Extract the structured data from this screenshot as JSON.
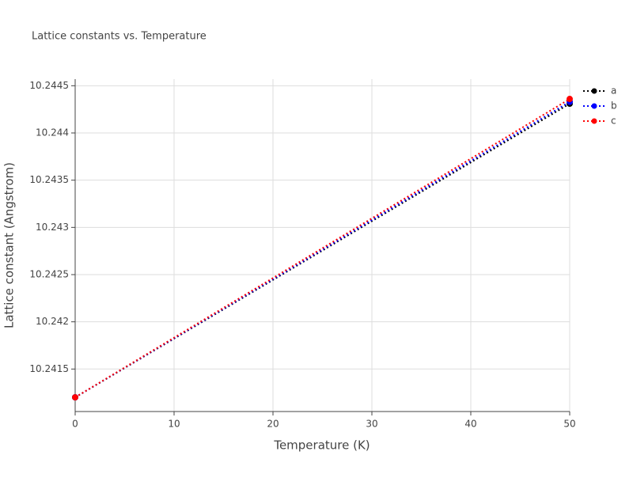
{
  "chart_data": {
    "type": "line",
    "title": "Lattice constants vs. Temperature",
    "x_label": "Temperature (K)",
    "y_label": "Lattice constant (Angstrom)",
    "x": [
      0,
      50
    ],
    "series": [
      {
        "name": "a",
        "color": "#000000",
        "values": [
          10.2412,
          10.24431
        ]
      },
      {
        "name": "b",
        "color": "#0000ff",
        "values": [
          10.2412,
          10.24433
        ]
      },
      {
        "name": "c",
        "color": "#ff0000",
        "values": [
          10.2412,
          10.24436
        ]
      }
    ],
    "xlim": [
      0,
      50
    ],
    "xticks": [
      0,
      10,
      20,
      30,
      40,
      50
    ],
    "ylim": [
      10.24105,
      10.24457
    ],
    "yticks": [
      10.2415,
      10.242,
      10.2425,
      10.243,
      10.2435,
      10.244,
      10.2445
    ],
    "grid": true,
    "legend": "top-right"
  }
}
